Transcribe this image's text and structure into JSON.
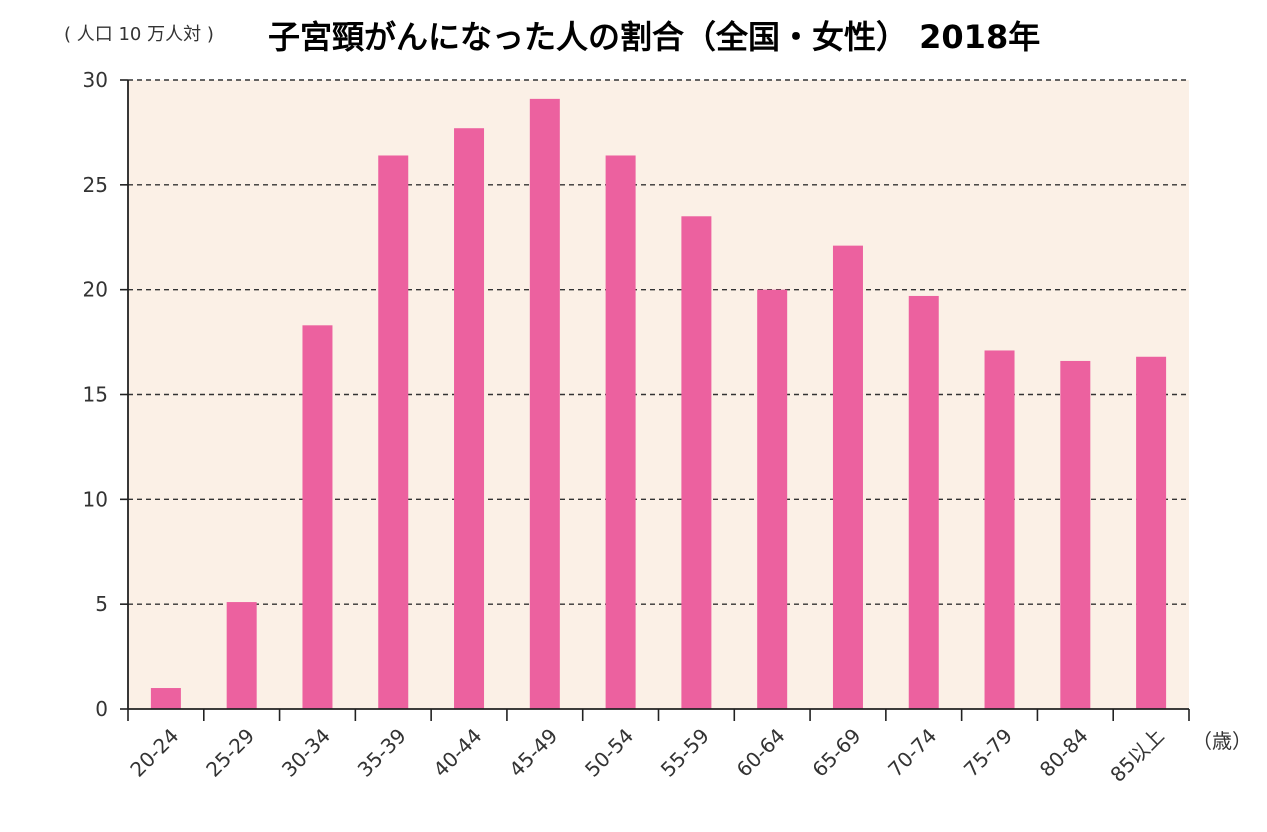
{
  "chart_data": {
    "type": "bar",
    "title": "子宮頸がんになった人の割合（全国・女性） 2018年",
    "unit_label": "( 人口 10 万人対 )",
    "xlabel": "（歳）",
    "ylabel": "",
    "categories": [
      "20-24",
      "25-29",
      "30-34",
      "35-39",
      "40-44",
      "45-49",
      "50-54",
      "55-59",
      "60-64",
      "65-69",
      "70-74",
      "75-79",
      "80-84",
      "85以上"
    ],
    "values": [
      1.0,
      5.1,
      18.3,
      26.4,
      27.7,
      29.1,
      26.4,
      23.5,
      20.0,
      22.1,
      19.7,
      17.1,
      16.6,
      16.8
    ],
    "ylim": [
      0,
      30
    ],
    "yticks": [
      "0",
      "5",
      "10",
      "15",
      "20",
      "25",
      "30"
    ],
    "grid": true,
    "colors": {
      "bar": "#ec619f",
      "plot_background": "#fbf0e6",
      "grid": "#333333",
      "axis": "#222222"
    }
  }
}
